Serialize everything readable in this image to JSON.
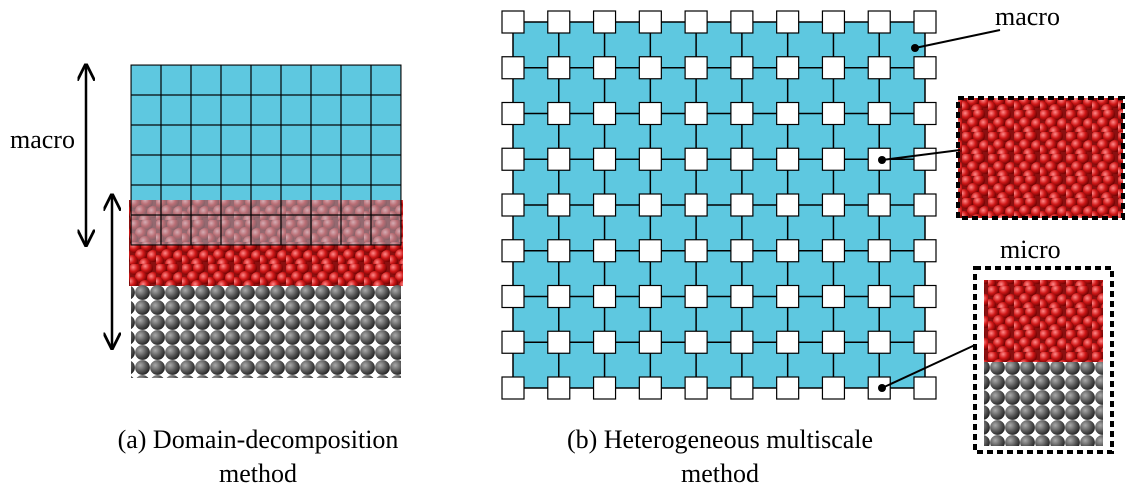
{
  "panel_a": {
    "label": "macro",
    "caption": [
      "(a) Domain-decomposition",
      "method"
    ]
  },
  "panel_b": {
    "macro_label": "macro",
    "micro_label": "micro",
    "caption": [
      "(b) Heterogeneous multiscale",
      "method"
    ]
  }
}
